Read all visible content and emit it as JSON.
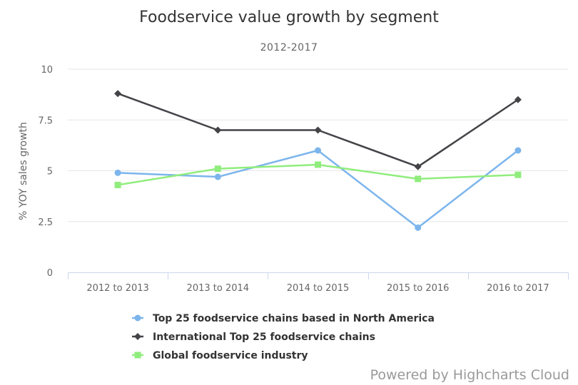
{
  "chart_data": {
    "type": "line",
    "title": "Foodservice value growth by segment",
    "subtitle": "2012-2017",
    "ylabel": "% YOY sales growth",
    "xlabel": "",
    "categories": [
      "2012 to 2013",
      "2013 to 2014",
      "2014 to 2015",
      "2015 to 2016",
      "2016 to 2017"
    ],
    "ylim": [
      0,
      10
    ],
    "yticks": [
      0,
      2.5,
      5,
      7.5,
      10
    ],
    "ytick_labels": [
      "0",
      "2.5",
      "5",
      "7.5",
      "10"
    ],
    "grid": true,
    "legend_position": "bottom",
    "series": [
      {
        "name": "Top 25 foodservice chains based in North America",
        "color": "#7cb5ec",
        "marker": "circle",
        "values": [
          4.9,
          4.7,
          6.0,
          2.2,
          6.0
        ]
      },
      {
        "name": "International Top 25 foodservice chains",
        "color": "#434348",
        "marker": "diamond",
        "values": [
          8.8,
          7.0,
          7.0,
          5.2,
          8.5
        ]
      },
      {
        "name": "Global foodservice industry",
        "color": "#90ed7d",
        "marker": "square",
        "values": [
          4.3,
          5.1,
          5.3,
          4.6,
          4.8
        ]
      }
    ]
  },
  "credits": "Powered by Highcharts Cloud"
}
